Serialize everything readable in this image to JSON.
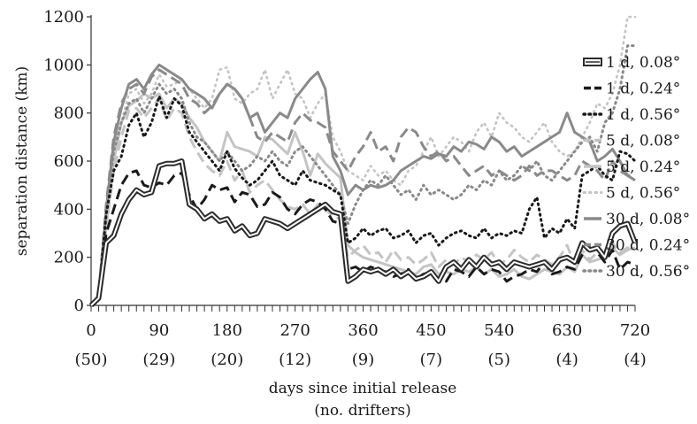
{
  "chart_data": {
    "type": "line",
    "ylabel": "separation distance (km)",
    "xlabel": "days since initial release",
    "xlabel2": "(no. drifters)",
    "xlim": [
      0,
      720
    ],
    "ylim": [
      0,
      1200
    ],
    "grid": false,
    "legend_position": "right",
    "y_ticks": [
      0,
      200,
      400,
      600,
      800,
      1000,
      1200
    ],
    "x_ticks": [
      {
        "day": 0,
        "label": "0",
        "count": "(50)"
      },
      {
        "day": 90,
        "label": "90",
        "count": "(29)"
      },
      {
        "day": 180,
        "label": "180",
        "count": "(20)"
      },
      {
        "day": 270,
        "label": "270",
        "count": "(12)"
      },
      {
        "day": 360,
        "label": "360",
        "count": "(9)"
      },
      {
        "day": 450,
        "label": "450",
        "count": "(7)"
      },
      {
        "day": 540,
        "label": "540",
        "count": "(5)"
      },
      {
        "day": 630,
        "label": "630",
        "count": "(4)"
      },
      {
        "day": 720,
        "label": "720",
        "count": "(4)"
      }
    ],
    "x": [
      0,
      10,
      20,
      30,
      40,
      50,
      60,
      70,
      80,
      90,
      100,
      110,
      120,
      130,
      140,
      150,
      160,
      170,
      180,
      190,
      200,
      210,
      220,
      230,
      240,
      250,
      260,
      270,
      280,
      290,
      300,
      310,
      320,
      330,
      340,
      350,
      360,
      370,
      380,
      390,
      400,
      410,
      420,
      430,
      440,
      450,
      460,
      470,
      480,
      490,
      500,
      510,
      520,
      530,
      540,
      550,
      560,
      570,
      580,
      590,
      600,
      610,
      620,
      630,
      640,
      650,
      660,
      670,
      680,
      690,
      700,
      710,
      720
    ],
    "series": [
      {
        "name": "1 d, 0.08°",
        "style": "double",
        "color": "#2b2b2b",
        "values": [
          0,
          30,
          260,
          290,
          380,
          440,
          480,
          460,
          470,
          580,
          590,
          590,
          600,
          420,
          400,
          360,
          380,
          350,
          360,
          310,
          330,
          290,
          300,
          360,
          350,
          340,
          320,
          340,
          360,
          380,
          400,
          420,
          390,
          380,
          100,
          120,
          150,
          140,
          150,
          130,
          150,
          120,
          140,
          110,
          120,
          140,
          100,
          160,
          180,
          150,
          190,
          160,
          200,
          170,
          180,
          150,
          180,
          170,
          160,
          170,
          180,
          150,
          190,
          200,
          180,
          260,
          230,
          240,
          200,
          300,
          330,
          340,
          260
        ]
      },
      {
        "name": "1 d, 0.24°",
        "style": "dash-long",
        "color": "#1a1a1a",
        "values": [
          0,
          30,
          300,
          400,
          500,
          550,
          560,
          500,
          490,
          510,
          500,
          540,
          550,
          460,
          400,
          440,
          500,
          480,
          490,
          430,
          470,
          460,
          410,
          420,
          470,
          450,
          400,
          380,
          420,
          440,
          430,
          400,
          350,
          340,
          150,
          160,
          140,
          160,
          150,
          140,
          120,
          130,
          150,
          110,
          130,
          140,
          110,
          100,
          150,
          140,
          120,
          160,
          130,
          150,
          140,
          100,
          120,
          130,
          150,
          140,
          180,
          130,
          140,
          160,
          150,
          210,
          240,
          220,
          180,
          230,
          150,
          180,
          170
        ]
      },
      {
        "name": "1 d, 0.56°",
        "style": "dot-dense",
        "color": "#1a1a1a",
        "values": [
          0,
          40,
          380,
          560,
          620,
          750,
          800,
          700,
          760,
          870,
          780,
          860,
          830,
          720,
          680,
          640,
          600,
          560,
          640,
          570,
          530,
          500,
          520,
          560,
          600,
          540,
          520,
          500,
          560,
          520,
          510,
          500,
          480,
          460,
          260,
          280,
          320,
          290,
          310,
          320,
          280,
          290,
          310,
          260,
          290,
          300,
          250,
          280,
          300,
          310,
          290,
          280,
          320,
          280,
          300,
          290,
          310,
          300,
          400,
          450,
          280,
          320,
          300,
          360,
          320,
          540,
          560,
          580,
          540,
          520,
          640,
          630,
          600
        ]
      },
      {
        "name": "5 d, 0.08°",
        "style": "dash-long",
        "color": "#c4c4c4",
        "values": [
          0,
          30,
          320,
          560,
          700,
          810,
          820,
          780,
          820,
          860,
          770,
          820,
          800,
          700,
          640,
          590,
          560,
          540,
          600,
          520,
          560,
          470,
          500,
          520,
          480,
          440,
          410,
          400,
          420,
          380,
          420,
          400,
          370,
          360,
          200,
          230,
          250,
          210,
          220,
          180,
          230,
          190,
          200,
          170,
          190,
          220,
          160,
          190,
          170,
          200,
          180,
          210,
          190,
          220,
          170,
          190,
          230,
          200,
          180,
          210,
          190,
          170,
          200,
          250,
          170,
          230,
          190,
          220,
          210,
          260,
          220,
          240,
          230
        ]
      },
      {
        "name": "5 d, 0.24°",
        "style": "solid",
        "color": "#c4c4c4",
        "values": [
          0,
          30,
          330,
          600,
          760,
          830,
          850,
          880,
          860,
          880,
          820,
          860,
          840,
          780,
          740,
          680,
          640,
          600,
          720,
          660,
          650,
          640,
          620,
          700,
          690,
          660,
          630,
          720,
          640,
          540,
          630,
          590,
          560,
          530,
          250,
          220,
          200,
          190,
          180,
          170,
          160,
          150,
          140,
          130,
          160,
          170,
          130,
          140,
          130,
          150,
          140,
          160,
          130,
          150,
          120,
          130,
          150,
          120,
          110,
          130,
          150,
          140,
          130,
          160,
          140,
          210,
          180,
          190,
          200,
          240,
          210,
          230,
          240
        ]
      },
      {
        "name": "5 d, 0.56°",
        "style": "dot-sparse",
        "color": "#c4c4c4",
        "values": [
          0,
          40,
          380,
          640,
          760,
          880,
          900,
          840,
          880,
          960,
          910,
          920,
          940,
          900,
          860,
          820,
          860,
          980,
          990,
          860,
          840,
          880,
          900,
          980,
          860,
          920,
          980,
          880,
          860,
          780,
          840,
          880,
          700,
          640,
          560,
          540,
          520,
          580,
          540,
          560,
          520,
          500,
          560,
          580,
          640,
          700,
          620,
          660,
          700,
          680,
          640,
          720,
          760,
          700,
          800,
          760,
          740,
          700,
          680,
          720,
          760,
          680,
          640,
          620,
          640,
          700,
          760,
          840,
          820,
          880,
          1000,
          1200,
          1200
        ]
      },
      {
        "name": "30 d, 0.08°",
        "style": "solid",
        "color": "#8a8a8a",
        "values": [
          0,
          40,
          400,
          680,
          820,
          920,
          940,
          900,
          960,
          1000,
          980,
          960,
          940,
          900,
          880,
          860,
          820,
          880,
          920,
          900,
          860,
          780,
          800,
          720,
          760,
          800,
          780,
          860,
          900,
          940,
          970,
          900,
          620,
          560,
          460,
          500,
          480,
          500,
          490,
          500,
          520,
          560,
          580,
          600,
          620,
          610,
          630,
          620,
          660,
          640,
          680,
          670,
          650,
          700,
          680,
          640,
          660,
          620,
          640,
          660,
          680,
          700,
          720,
          800,
          720,
          700,
          680,
          600,
          620,
          650,
          600,
          540,
          520
        ]
      },
      {
        "name": "30 d, 0.24°",
        "style": "dash-long",
        "color": "#8a8a8a",
        "values": [
          0,
          40,
          420,
          700,
          840,
          900,
          920,
          880,
          950,
          980,
          960,
          940,
          920,
          860,
          840,
          800,
          830,
          880,
          920,
          900,
          860,
          780,
          700,
          680,
          720,
          700,
          680,
          760,
          800,
          770,
          760,
          740,
          640,
          600,
          560,
          620,
          660,
          720,
          640,
          660,
          600,
          700,
          740,
          720,
          660,
          620,
          640,
          600,
          620,
          580,
          540,
          560,
          580,
          540,
          560,
          540,
          520,
          540,
          580,
          540,
          560,
          560,
          540,
          520,
          540,
          600,
          580,
          560,
          520,
          600,
          560,
          540,
          540
        ]
      },
      {
        "name": "30 d, 0.56°",
        "style": "dot-dense",
        "color": "#8a8a8a",
        "values": [
          0,
          40,
          380,
          640,
          760,
          840,
          860,
          800,
          860,
          920,
          880,
          900,
          860,
          760,
          700,
          680,
          640,
          600,
          640,
          600,
          560,
          580,
          620,
          600,
          640,
          600,
          580,
          640,
          660,
          620,
          580,
          540,
          500,
          460,
          340,
          420,
          480,
          520,
          500,
          540,
          500,
          460,
          480,
          440,
          500,
          460,
          480,
          460,
          440,
          460,
          500,
          480,
          520,
          500,
          560,
          520,
          540,
          580,
          560,
          600,
          540,
          520,
          560,
          600,
          640,
          680,
          700,
          640,
          760,
          800,
          900,
          1080,
          1080
        ]
      }
    ]
  }
}
